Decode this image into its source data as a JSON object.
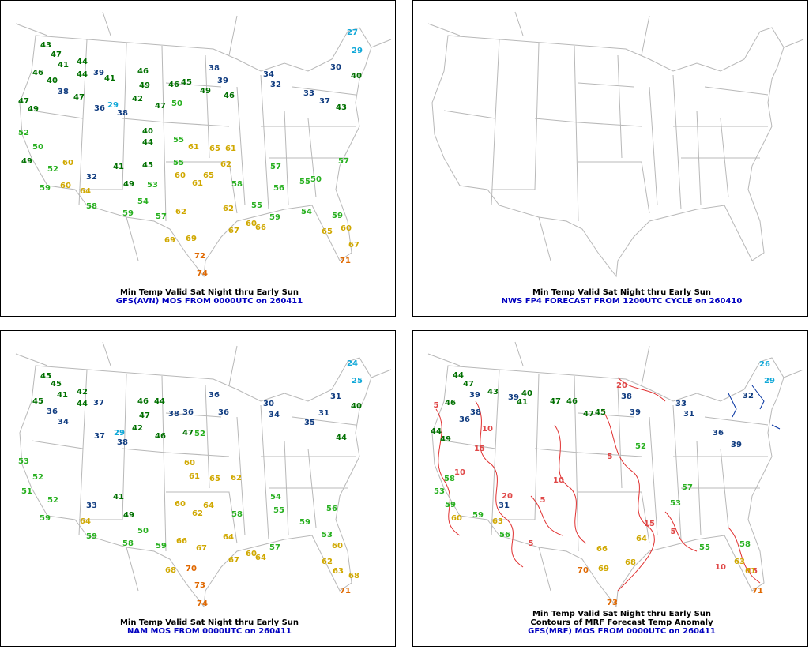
{
  "panels": [
    {
      "caption_lines": [
        "Min Temp Valid Sat Night thru Early Sun",
        "GFS(AVN) MOS FROM 0000UTC on 260411"
      ],
      "stations": [
        43,
        47,
        41,
        44,
        46,
        40,
        44,
        38,
        47,
        47,
        49,
        39,
        41,
        46,
        49,
        42,
        36,
        29,
        38,
        47,
        50,
        46,
        45,
        38,
        39,
        49,
        46,
        34,
        32,
        33,
        30,
        27,
        29,
        40,
        37,
        43,
        52,
        50,
        49,
        52,
        59,
        60,
        32,
        60,
        64,
        58,
        41,
        49,
        53,
        54,
        59,
        57,
        62,
        69,
        69,
        72,
        74,
        55,
        60,
        61,
        65,
        62,
        61,
        65,
        58,
        55,
        62,
        67,
        60,
        66,
        59,
        54,
        59,
        65,
        60,
        67,
        71,
        57,
        56,
        55,
        50,
        57,
        40,
        44,
        45,
        55,
        61
      ]
    },
    {
      "caption_lines": [
        "Min Temp Valid Sat Night thru Early Sun",
        "NWS FP4 FORECAST FROM 1200UTC CYCLE on 260410"
      ],
      "stations": []
    },
    {
      "caption_lines": [
        "Min Temp Valid Sat Night thru Early Sun",
        "NAM MOS FROM 0000UTC on 260411"
      ],
      "stations": [
        45,
        45,
        41,
        42,
        45,
        36,
        44,
        34,
        37,
        46,
        44,
        47,
        42,
        37,
        29,
        38,
        46,
        47,
        52,
        38,
        36,
        36,
        36,
        30,
        34,
        31,
        24,
        25,
        31,
        40,
        35,
        44,
        53,
        52,
        51,
        52,
        59,
        64,
        33,
        59,
        41,
        49,
        50,
        58,
        59,
        66,
        67,
        68,
        70,
        73,
        74,
        60,
        61,
        65,
        62,
        60,
        62,
        64,
        58,
        64,
        67,
        60,
        64,
        57,
        53,
        60,
        62,
        63,
        68,
        71,
        54,
        55,
        59,
        56
      ]
    },
    {
      "caption_lines": [
        "Min Temp Valid Sat Night thru Early Sun",
        "Contours of MRF Forecast Temp Anomaly",
        "GFS(MRF) MOS FROM 0000UTC on 260411"
      ],
      "stations": [
        26,
        29,
        44,
        47,
        39,
        43,
        38,
        46,
        36,
        44,
        49,
        39,
        40,
        41,
        47,
        46,
        47,
        45,
        38,
        39,
        33,
        31,
        32,
        36,
        39,
        58,
        53,
        59,
        60,
        63,
        56,
        59,
        31,
        66,
        70,
        73,
        69,
        68,
        64,
        53,
        57,
        55,
        58,
        63,
        61,
        71,
        52
      ],
      "contour_labels": [
        5,
        10,
        15,
        20,
        10,
        5,
        15,
        5,
        10,
        5,
        15,
        20,
        10,
        5
      ]
    }
  ]
}
